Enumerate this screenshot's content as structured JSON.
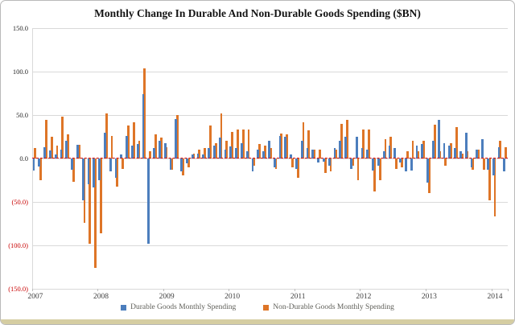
{
  "title": "Monthly Change In Durable And Non-Durable Goods Spending ($BN)",
  "colors": {
    "durable_blue": "#4C7EBD",
    "nondurable_orange": "#DE7527",
    "negative_label_red": "#C80000",
    "zero_line_red": "#E01212",
    "gridline_gray": "#D9D9D9",
    "bottom_strip_tan": "#D5CDA2"
  },
  "y_axis": {
    "ticks": [
      {
        "value": 150,
        "label": "150.0",
        "negative": false
      },
      {
        "value": 100,
        "label": "100.0",
        "negative": false
      },
      {
        "value": 50,
        "label": "50.0",
        "negative": false
      },
      {
        "value": 0,
        "label": "0.0",
        "negative": false
      },
      {
        "value": -50,
        "label": "(50.0)",
        "negative": true
      },
      {
        "value": -100,
        "label": "(100.0)",
        "negative": true
      },
      {
        "value": -150,
        "label": "(150.0)",
        "negative": true
      }
    ]
  },
  "x_axis": {
    "years": [
      "2007",
      "2008",
      "2009",
      "2010",
      "2011",
      "2012",
      "2013",
      "2014"
    ]
  },
  "legend": {
    "items": [
      {
        "label": "Durable Goods Monthly Spending",
        "color": "#4C7EBD"
      },
      {
        "label": "Non-Durable Goods Monthly Spending",
        "color": "#DE7527"
      }
    ]
  },
  "chart_data": {
    "type": "bar",
    "title": "Monthly Change In Durable And Non-Durable Goods Spending ($BN)",
    "xlabel": "",
    "ylabel": "",
    "ylim": [
      -150,
      150
    ],
    "grid_step": 50,
    "grid": true,
    "legend_position": "bottom",
    "zero_line": "red-dashed",
    "x": [
      "2007-01",
      "2007-02",
      "2007-03",
      "2007-04",
      "2007-05",
      "2007-06",
      "2007-07",
      "2007-08",
      "2007-09",
      "2007-10",
      "2007-11",
      "2007-12",
      "2008-01",
      "2008-02",
      "2008-03",
      "2008-04",
      "2008-05",
      "2008-06",
      "2008-07",
      "2008-08",
      "2008-09",
      "2008-10",
      "2008-11",
      "2008-12",
      "2009-01",
      "2009-02",
      "2009-03",
      "2009-04",
      "2009-05",
      "2009-06",
      "2009-07",
      "2009-08",
      "2009-09",
      "2009-10",
      "2009-11",
      "2009-12",
      "2010-01",
      "2010-02",
      "2010-03",
      "2010-04",
      "2010-05",
      "2010-06",
      "2010-07",
      "2010-08",
      "2010-09",
      "2010-10",
      "2010-11",
      "2010-12",
      "2011-01",
      "2011-02",
      "2011-03",
      "2011-04",
      "2011-05",
      "2011-06",
      "2011-07",
      "2011-08",
      "2011-09",
      "2011-10",
      "2011-11",
      "2011-12",
      "2012-01",
      "2012-02",
      "2012-03",
      "2012-04",
      "2012-05",
      "2012-06",
      "2012-07",
      "2012-08",
      "2012-09",
      "2012-10",
      "2012-11",
      "2012-12",
      "2013-01",
      "2013-02",
      "2013-03",
      "2013-04",
      "2013-05",
      "2013-06",
      "2013-07",
      "2013-08",
      "2013-09",
      "2013-10",
      "2013-11",
      "2013-12",
      "2014-01",
      "2014-02",
      "2014-03"
    ],
    "series": [
      {
        "name": "Durable Goods Monthly Spending",
        "color": "#4C7EBD",
        "values": [
          -14,
          -9,
          13,
          9,
          5,
          10,
          20,
          -13,
          16,
          -48,
          -30,
          -33,
          -25,
          30,
          -15,
          -22,
          5,
          26,
          15,
          17,
          74,
          -98,
          12,
          20,
          18,
          -13,
          45,
          -15,
          -6,
          5,
          6,
          5,
          12,
          15,
          24,
          10,
          14,
          12,
          18,
          8,
          -15,
          10,
          8,
          20,
          -10,
          26,
          25,
          5,
          -12,
          20,
          12,
          10,
          -5,
          -4,
          -8,
          12,
          20,
          25,
          -12,
          25,
          12,
          10,
          -14,
          -8,
          8,
          15,
          12,
          -5,
          -15,
          -14,
          15,
          17,
          -28,
          20,
          44,
          18,
          15,
          12,
          8,
          30,
          -10,
          10,
          22,
          -13,
          -19,
          13,
          -15
        ]
      },
      {
        "name": "Non-Durable Goods Monthly Spending",
        "color": "#DE7527",
        "values": [
          12,
          -25,
          44,
          25,
          15,
          48,
          28,
          -27,
          16,
          -74,
          -98,
          -126,
          -86,
          52,
          26,
          -32,
          -12,
          38,
          42,
          20,
          104,
          8,
          28,
          24,
          13,
          -13,
          50,
          -19,
          -10,
          6,
          10,
          12,
          38,
          18,
          52,
          20,
          31,
          33,
          33,
          33,
          -8,
          17,
          15,
          12,
          -12,
          29,
          28,
          -10,
          -22,
          42,
          32,
          10,
          10,
          -17,
          -15,
          10,
          40,
          44,
          -8,
          -25,
          33,
          33,
          -38,
          -25,
          22,
          25,
          -12,
          -10,
          8,
          20,
          8,
          20,
          -40,
          39,
          8,
          -8,
          18,
          36,
          6,
          8,
          -13,
          10,
          -13,
          -48,
          -67,
          20,
          13
        ]
      }
    ]
  }
}
